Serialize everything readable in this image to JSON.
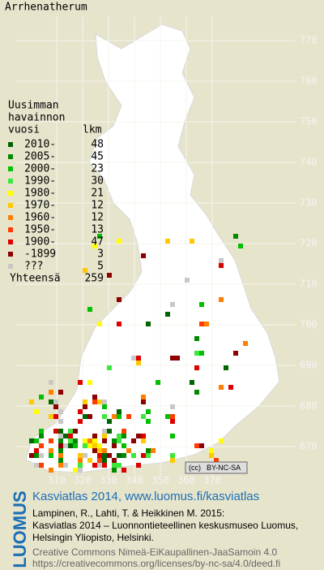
{
  "title": "Arrhenatherum",
  "legend": {
    "heading": [
      "Uusimman",
      "havainnon"
    ],
    "col_labels": [
      "vuosi",
      "lkm"
    ],
    "rows": [
      {
        "label": "2010-",
        "count": 48,
        "color": "#006400"
      },
      {
        "label": "2005-",
        "count": 45,
        "color": "#008a00"
      },
      {
        "label": "2000-",
        "count": 23,
        "color": "#00c000"
      },
      {
        "label": "1990-",
        "count": 30,
        "color": "#3ce83c"
      },
      {
        "label": "1980-",
        "count": 21,
        "color": "#ffff00"
      },
      {
        "label": "1970-",
        "count": 12,
        "color": "#ffc800"
      },
      {
        "label": "1960-",
        "count": 12,
        "color": "#ff8000"
      },
      {
        "label": "1950-",
        "count": 13,
        "color": "#ff3c00"
      },
      {
        "label": "1900-",
        "count": 47,
        "color": "#dc0000"
      },
      {
        "label": "-1899",
        "count": 3,
        "color": "#8c0000"
      },
      {
        "label": "???",
        "count": 5,
        "color": "#c8c8c8"
      }
    ],
    "total_label": "Yhteensä",
    "total": 259
  },
  "grid": {
    "x_labels": [
      310,
      320,
      330,
      340,
      350,
      360,
      370
    ],
    "y_labels": [
      670,
      680,
      690,
      700,
      710,
      720,
      730,
      740,
      750,
      760,
      770
    ]
  },
  "badge": {
    "cc": "(cc)",
    "license": "BY-NC-SA"
  },
  "credits": {
    "logo": "LUOMUS",
    "headline": "Kasviatlas 2014, www.luomus.fi/kasviatlas",
    "citation": [
      "Lampinen, R., Lahti, T. & Heikkinen M. 2015:",
      "Kasviatlas 2014 – Luonnontieteellinen keskusmuseo Luomus,",
      "Helsingin Yliopisto, Helsinki."
    ],
    "license": [
      "Creative Commons Nimeä-EiKaupallinen-JaaSamoin 4.0",
      "https://creativecommons.org/licenses/by-nc-sa/4.0/deed.fi"
    ]
  }
}
